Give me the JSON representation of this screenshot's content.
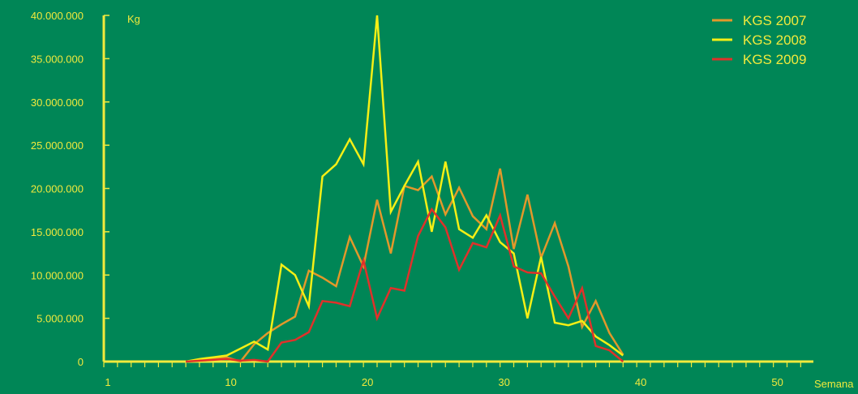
{
  "chart_data": {
    "type": "line",
    "title": "",
    "xlabel": "Semana",
    "ylabel": "Kg",
    "xlim": [
      1,
      53
    ],
    "ylim": [
      0,
      40000000
    ],
    "x_ticks": [
      1,
      10,
      20,
      30,
      40,
      50
    ],
    "y_ticks": [
      {
        "value": 0,
        "label": "0"
      },
      {
        "value": 5000000,
        "label": "5.000.000"
      },
      {
        "value": 10000000,
        "label": "10.000.000"
      },
      {
        "value": 15000000,
        "label": "15.000.000"
      },
      {
        "value": 20000000,
        "label": "20.000.000"
      },
      {
        "value": 25000000,
        "label": "25.000.000"
      },
      {
        "value": 30000000,
        "label": "30.000.000"
      },
      {
        "value": 35000000,
        "label": "35.000.000"
      },
      {
        "value": 40000000,
        "label": "40.000.000"
      }
    ],
    "legend_position": "top-right",
    "grid": false,
    "colors": {
      "background": "#008656",
      "axis": "#f2ea3c",
      "text": "#f2ea3c"
    },
    "x": [
      1,
      2,
      3,
      4,
      5,
      6,
      7,
      8,
      9,
      10,
      11,
      12,
      13,
      14,
      15,
      16,
      17,
      18,
      19,
      20,
      21,
      22,
      23,
      24,
      25,
      26,
      27,
      28,
      29,
      30,
      31,
      32,
      33,
      34,
      35,
      36,
      37,
      38,
      39,
      40,
      41,
      42,
      43,
      44,
      45,
      46,
      47,
      48,
      49,
      50,
      51,
      52,
      53
    ],
    "series": [
      {
        "name": "KGS 2007",
        "color": "#e2982a",
        "values": [
          0,
          0,
          0,
          0,
          0,
          0,
          0,
          200000,
          400000,
          500000,
          0,
          2000000,
          3300000,
          4300000,
          5200000,
          10500000,
          9700000,
          8700000,
          14400000,
          11000000,
          18700000,
          12500000,
          20300000,
          19800000,
          21400000,
          17000000,
          20100000,
          16800000,
          15300000,
          22300000,
          13000000,
          19300000,
          12000000,
          16000000,
          11000000,
          4000000,
          7000000,
          3300000,
          800000,
          0,
          0,
          0,
          0,
          0,
          0,
          0,
          0,
          0,
          0,
          0,
          0,
          0,
          0
        ]
      },
      {
        "name": "KGS 2008",
        "color": "#f5ef15",
        "values": [
          0,
          0,
          0,
          0,
          0,
          0,
          0,
          300000,
          500000,
          700000,
          1500000,
          2300000,
          1400000,
          11200000,
          10000000,
          6400000,
          21400000,
          22800000,
          25700000,
          22800000,
          40000000,
          17300000,
          20300000,
          23100000,
          15000000,
          23100000,
          15300000,
          14300000,
          16900000,
          13800000,
          12500000,
          5000000,
          12100000,
          4500000,
          4200000,
          4700000,
          2900000,
          1900000,
          700000,
          0,
          0,
          0,
          0,
          0,
          0,
          0,
          0,
          0,
          0,
          0,
          0,
          0,
          0
        ]
      },
      {
        "name": "KGS 2009",
        "color": "#e0312a",
        "values": [
          0,
          0,
          0,
          0,
          0,
          0,
          0,
          100000,
          200000,
          300000,
          100000,
          200000,
          0,
          2200000,
          2500000,
          3400000,
          7000000,
          6800000,
          6400000,
          11700000,
          5000000,
          8500000,
          8200000,
          14500000,
          17600000,
          15500000,
          10600000,
          13700000,
          13200000,
          16900000,
          11000000,
          10300000,
          10200000,
          7500000,
          5000000,
          8500000,
          1800000,
          1300000,
          0,
          0,
          0,
          0,
          0,
          0,
          0,
          0,
          0,
          0,
          0,
          0,
          0,
          0,
          0
        ]
      }
    ]
  }
}
